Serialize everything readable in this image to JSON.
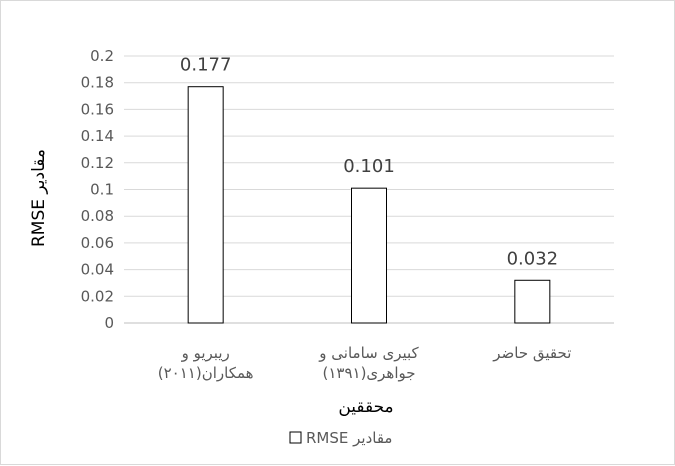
{
  "chart_data": {
    "type": "bar",
    "categories": [
      [
        "ریبریو و",
        "همکاران(۲۰۱۱)"
      ],
      [
        "کبیری سامانی و",
        "جواهری(۱۳۹۱)"
      ],
      [
        "تحقیق حاضر"
      ]
    ],
    "values": [
      0.177,
      0.101,
      0.032
    ],
    "data_labels": [
      "0.177",
      "0.101",
      "0.032"
    ],
    "xlabel": "محققین",
    "ylabel": "مقادیر RMSE",
    "ylim": [
      0,
      0.2
    ],
    "yticks": [
      "0",
      "0.02",
      "0.04",
      "0.06",
      "0.08",
      "0.1",
      "0.12",
      "0.14",
      "0.16",
      "0.18",
      "0.2"
    ],
    "legend": {
      "label": "مقادیر RMSE",
      "placement": "bottom"
    },
    "grid": true,
    "colors": {
      "bar_fill": "#ffffff",
      "bar_stroke": "#000000",
      "grid": "#d9d9d9",
      "axis": "#bfbfbf"
    }
  }
}
